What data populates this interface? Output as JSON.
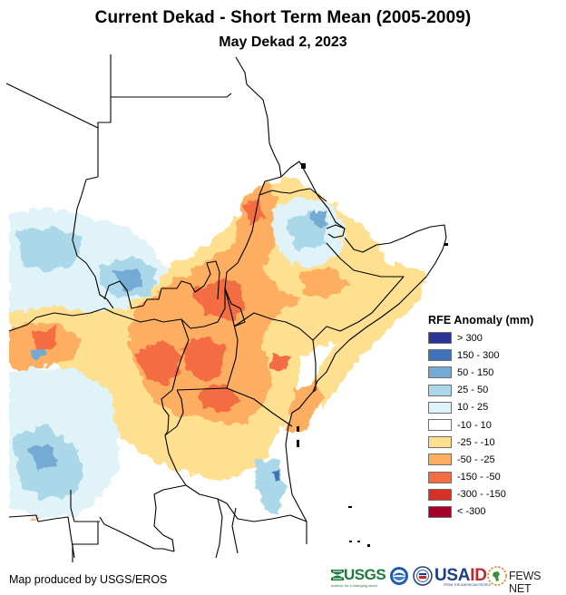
{
  "header": {
    "title": "Current Dekad - Short Term Mean (2005-2009)",
    "subtitle": "May Dekad 2, 2023"
  },
  "map": {
    "region": "East Africa",
    "variable": "Rainfall Estimate (RFE) anomaly",
    "units": "mm",
    "colors": {
      "gt300": "#2b3494",
      "150_300": "#3f72b8",
      "50_150": "#74aad3",
      "25_50": "#aad8e8",
      "10_25": "#e0f3f8",
      "neutral": "#ffffff",
      "m25_m10": "#fee090",
      "m50_m25": "#fdae61",
      "m150_m50": "#f46d43",
      "m300_m150": "#d73027",
      "lt_m300": "#a50026",
      "border": "#000000"
    }
  },
  "legend": {
    "title": "RFE Anomaly (mm)",
    "items": [
      {
        "label": "> 300",
        "color": "#2b3494"
      },
      {
        "label": "150 - 300",
        "color": "#3f72b8"
      },
      {
        "label": "50 - 150",
        "color": "#74aad3"
      },
      {
        "label": "25 - 50",
        "color": "#aad8e8"
      },
      {
        "label": "10 - 25",
        "color": "#e0f3f8"
      },
      {
        "label": "-10 - 10",
        "color": "#ffffff"
      },
      {
        "label": "-25 - -10",
        "color": "#fee090"
      },
      {
        "label": "-50 - -25",
        "color": "#fdae61"
      },
      {
        "label": "-150 - -50",
        "color": "#f46d43"
      },
      {
        "label": "-300 - -150",
        "color": "#d73027"
      },
      {
        "label": "< -300",
        "color": "#a50026"
      }
    ]
  },
  "footer": {
    "credit": "Map produced by USGS/EROS",
    "logos": {
      "usgs": "USGS",
      "usgs_tagline": "science for a changing world",
      "usaid_a": "USA",
      "usaid_b": "ID",
      "usaid_tagline": "FROM THE AMERICAN PEOPLE",
      "fews": "FEWS NET"
    }
  }
}
